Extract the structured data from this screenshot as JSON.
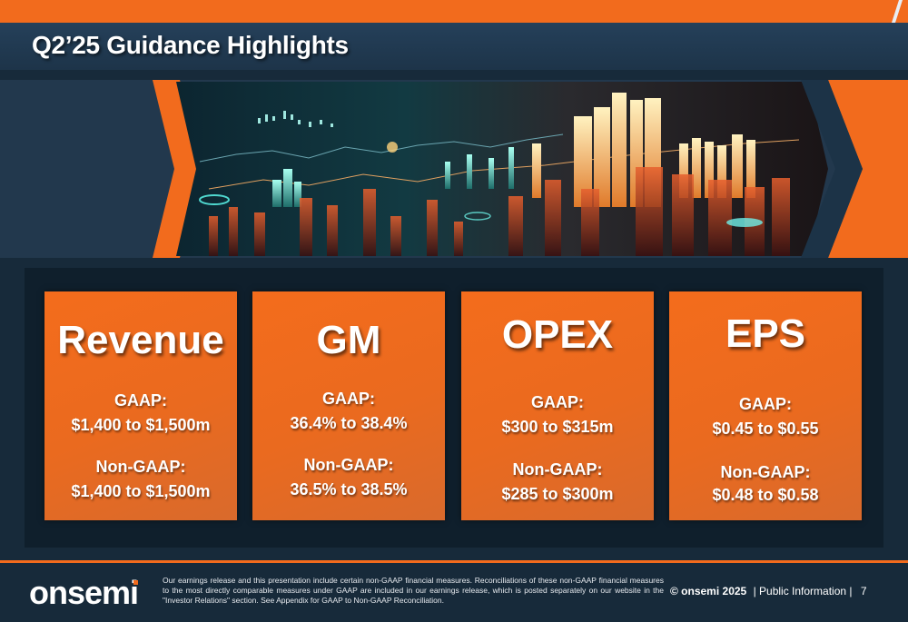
{
  "header": {
    "title": "Q2’25 Guidance Highlights"
  },
  "cards": [
    {
      "title": "Revenue",
      "gaap_label": "GAAP:",
      "gaap_value": "$1,400 to $1,500m",
      "nongaap_label": "Non-GAAP:",
      "nongaap_value": "$1,400 to $1,500m"
    },
    {
      "title": "GM",
      "gaap_label": "GAAP:",
      "gaap_value": "36.4% to 38.4%",
      "nongaap_label": "Non-GAAP:",
      "nongaap_value": "36.5% to 38.5%"
    },
    {
      "title": "OPEX",
      "gaap_label": "GAAP:",
      "gaap_value": "$300 to $315m",
      "nongaap_label": "Non-GAAP:",
      "nongaap_value": "$285 to $300m"
    },
    {
      "title": "EPS",
      "gaap_label": "GAAP:",
      "gaap_value": "$0.45 to $0.55",
      "nongaap_label": "Non-GAAP:",
      "nongaap_value": "$0.48 to $0.58"
    }
  ],
  "footer": {
    "logo": "onsemi",
    "disclaimer": "Our earnings release and this presentation include certain non-GAAP financial measures. Reconciliations of these non-GAAP financial measures to the most directly comparable measures under GAAP are included in our earnings release, which is posted separately on our website in the \"Investor Relations\" section. See Appendix for GAAP to Non-GAAP Reconciliation.",
    "copyright": "© onsemi 2025",
    "classification": "| Public Information |",
    "page_number": "7"
  },
  "colors": {
    "accent": "#f26b1d",
    "navy": "#172a3a",
    "band": "#22384d"
  },
  "icons": {
    "hero_image": "financial-chart-image",
    "logo": "onsemi-logo"
  }
}
